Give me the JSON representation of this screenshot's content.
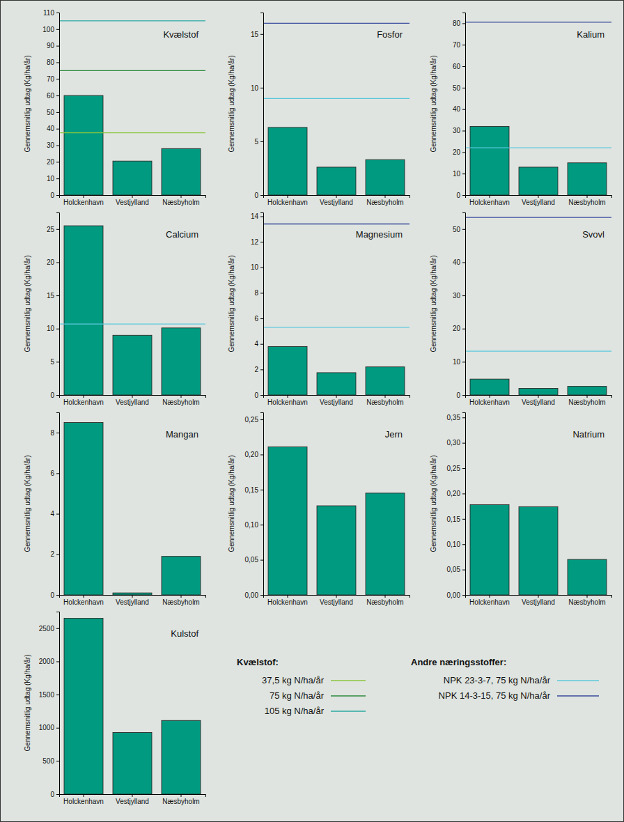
{
  "chart_data": [
    {
      "type": "bar",
      "title": "Kvælstof",
      "categories": [
        "Holckenhavn",
        "Vestjylland",
        "Næsbyholm"
      ],
      "values": [
        60,
        20.5,
        28
      ],
      "color": "#009a80",
      "ylabel": "Gennemsnitlig udtag (Kg/ha/år)",
      "ylim": [
        0,
        110
      ],
      "yticks": [
        0,
        10,
        20,
        30,
        40,
        50,
        60,
        70,
        80,
        90,
        100,
        110
      ],
      "reference_lines": [
        {
          "value": 37.5,
          "color": "#8cc63f"
        },
        {
          "value": 75,
          "color": "#2d8a3e"
        },
        {
          "value": 105,
          "color": "#2aa8a0"
        }
      ]
    },
    {
      "type": "bar",
      "title": "Fosfor",
      "categories": [
        "Holckenhavn",
        "Vestjylland",
        "Næsbyholm"
      ],
      "values": [
        6.3,
        2.6,
        3.3
      ],
      "color": "#009a80",
      "ylabel": "Gennemsnitlig udtag (Kg/ha/år)",
      "ylim": [
        0,
        17
      ],
      "yticks": [
        0,
        5,
        10,
        15
      ],
      "reference_lines": [
        {
          "value": 9,
          "color": "#5cc8dc"
        },
        {
          "value": 16,
          "color": "#3a4a9c"
        }
      ]
    },
    {
      "type": "bar",
      "title": "Kalium",
      "categories": [
        "Holckenhavn",
        "Vestjylland",
        "Næsbyholm"
      ],
      "values": [
        32,
        13,
        15
      ],
      "color": "#009a80",
      "ylabel": "Gennemsnitlig udtag (Kg/ha/år)",
      "ylim": [
        0,
        85
      ],
      "yticks": [
        0,
        10,
        20,
        30,
        40,
        50,
        60,
        70,
        80
      ],
      "reference_lines": [
        {
          "value": 22,
          "color": "#5cc8dc"
        },
        {
          "value": 80.5,
          "color": "#3a4a9c"
        }
      ]
    },
    {
      "type": "bar",
      "title": "Calcium",
      "categories": [
        "Holckenhavn",
        "Vestjylland",
        "Næsbyholm"
      ],
      "values": [
        25.5,
        9,
        10.1
      ],
      "color": "#009a80",
      "ylabel": "Gennemsnitlig udtag (Kg/ha/år)",
      "ylim": [
        0,
        27.5
      ],
      "yticks": [
        0,
        5,
        10,
        15,
        20,
        25
      ],
      "reference_lines": [
        {
          "value": 10.7,
          "color": "#5cc8dc"
        }
      ]
    },
    {
      "type": "bar",
      "title": "Magnesium",
      "categories": [
        "Holckenhavn",
        "Vestjylland",
        "Næsbyholm"
      ],
      "values": [
        3.8,
        1.75,
        2.2
      ],
      "color": "#009a80",
      "ylabel": "Gennemsnitlig udtag (Kg/ha/år)",
      "ylim": [
        0,
        14.3
      ],
      "yticks": [
        0,
        2,
        4,
        6,
        8,
        10,
        12,
        14
      ],
      "reference_lines": [
        {
          "value": 5.3,
          "color": "#5cc8dc"
        },
        {
          "value": 13.4,
          "color": "#3a4a9c"
        }
      ]
    },
    {
      "type": "bar",
      "title": "Svovl",
      "categories": [
        "Holckenhavn",
        "Vestjylland",
        "Næsbyholm"
      ],
      "values": [
        4.8,
        2,
        2.6
      ],
      "color": "#009a80",
      "ylabel": "Gennemsnitlig udtag (Kg/ha/år)",
      "ylim": [
        0,
        55
      ],
      "yticks": [
        0,
        10,
        20,
        30,
        40,
        50
      ],
      "reference_lines": [
        {
          "value": 13.2,
          "color": "#5cc8dc"
        },
        {
          "value": 53.5,
          "color": "#3a4a9c"
        }
      ]
    },
    {
      "type": "bar",
      "title": "Mangan",
      "categories": [
        "Holckenhavn",
        "Vestjylland",
        "Næsbyholm"
      ],
      "values": [
        8.5,
        0.1,
        1.9
      ],
      "color": "#009a80",
      "ylabel": "Gennemsnitlig udtag (Kg/ha/år)",
      "ylim": [
        0,
        9
      ],
      "yticks": [
        0,
        2,
        4,
        6,
        8
      ],
      "reference_lines": []
    },
    {
      "type": "bar",
      "title": "Jern",
      "categories": [
        "Holckenhavn",
        "Vestjylland",
        "Næsbyholm"
      ],
      "values": [
        0.211,
        0.127,
        0.145
      ],
      "color": "#009a80",
      "ylabel": "Gennemsnitlig udtag (Kg/ha/år)",
      "ylim": [
        0,
        0.26
      ],
      "yticks": [
        {
          "value": 0,
          "label": "0,00"
        },
        {
          "value": 0.05,
          "label": "0,05"
        },
        {
          "value": 0.1,
          "label": "0,10"
        },
        {
          "value": 0.15,
          "label": "0,15"
        },
        {
          "value": 0.2,
          "label": "0,20"
        },
        {
          "value": 0.25,
          "label": "0,25"
        }
      ],
      "reference_lines": []
    },
    {
      "type": "bar",
      "title": "Natrium",
      "categories": [
        "Holckenhavn",
        "Vestjylland",
        "Næsbyholm"
      ],
      "values": [
        0.178,
        0.174,
        0.07
      ],
      "color": "#009a80",
      "ylabel": "Gennemsnitlig udtag (Kg/ha/år)",
      "ylim": [
        0,
        0.36
      ],
      "yticks": [
        {
          "value": 0,
          "label": "0,00"
        },
        {
          "value": 0.05,
          "label": "0,05"
        },
        {
          "value": 0.1,
          "label": "0,10"
        },
        {
          "value": 0.15,
          "label": "0,15"
        },
        {
          "value": 0.2,
          "label": "0,20"
        },
        {
          "value": 0.25,
          "label": "0,25"
        },
        {
          "value": 0.3,
          "label": "0,30"
        },
        {
          "value": 0.35,
          "label": "0,35"
        }
      ],
      "reference_lines": []
    },
    {
      "type": "bar",
      "title": "Kulstof",
      "categories": [
        "Holckenhavn",
        "Vestjylland",
        "Næsbyholm"
      ],
      "values": [
        2650,
        930,
        1110
      ],
      "color": "#009a80",
      "ylabel": "Gennemsnitlig udtag (Kg/ha/år)",
      "ylim": [
        0,
        2750
      ],
      "yticks": [
        0,
        500,
        1000,
        1500,
        2000,
        2500
      ],
      "reference_lines": []
    }
  ],
  "legend_key": {
    "groups": [
      {
        "title": "Kvælstof:",
        "entries": [
          {
            "label": "37,5 kg N/ha/år",
            "color": "#8cc63f"
          },
          {
            "label": "75 kg N/ha/år",
            "color": "#2d8a3e"
          },
          {
            "label": "105 kg N/ha/år",
            "color": "#2aa8a0"
          }
        ]
      },
      {
        "title": "Andre næringsstoffer:",
        "entries": [
          {
            "label": "NPK 23-3-7, 75 kg N/ha/år",
            "color": "#5cc8dc"
          },
          {
            "label": "NPK 14-3-15, 75 kg N/ha/år",
            "color": "#3a4a9c"
          }
        ]
      }
    ]
  }
}
